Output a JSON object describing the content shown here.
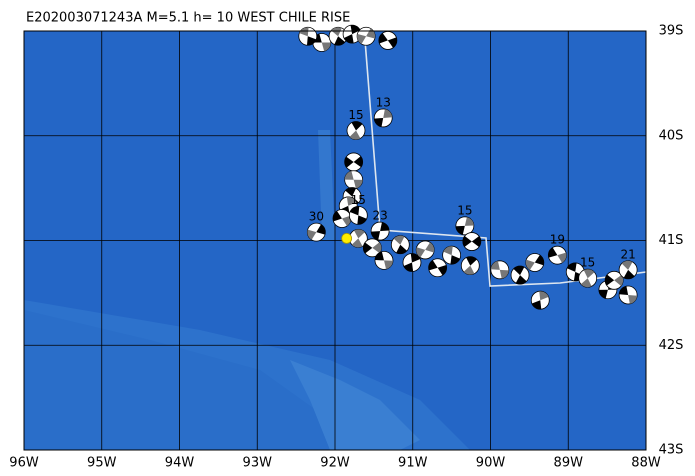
{
  "map": {
    "title": "E202003071243A  M=5.1  h= 10  WEST CHILE RISE",
    "xlim": [
      96,
      88
    ],
    "ylim": [
      39,
      43
    ],
    "xticks": [
      {
        "value": 96,
        "label": "96W"
      },
      {
        "value": 95,
        "label": "95W"
      },
      {
        "value": 94,
        "label": "94W"
      },
      {
        "value": 93,
        "label": "93W"
      },
      {
        "value": 92,
        "label": "92W"
      },
      {
        "value": 91,
        "label": "91W"
      },
      {
        "value": 90,
        "label": "90W"
      },
      {
        "value": 89,
        "label": "89W"
      },
      {
        "value": 88,
        "label": "88W"
      }
    ],
    "yticks": [
      {
        "value": 39,
        "label": "39S"
      },
      {
        "value": 40,
        "label": "40S"
      },
      {
        "value": 41,
        "label": "41S"
      },
      {
        "value": 42,
        "label": "42S"
      },
      {
        "value": 43,
        "label": "43S"
      }
    ],
    "grid": true,
    "epicenter": {
      "lon": 91.85,
      "lat": 40.98,
      "color": "#ffee00"
    },
    "events": [
      {
        "lon": 92.17,
        "lat": 39.11
      },
      {
        "lon": 91.96,
        "lat": 39.05
      },
      {
        "lon": 91.78,
        "lat": 39.03
      },
      {
        "lon": 91.6,
        "lat": 39.05
      },
      {
        "lon": 91.32,
        "lat": 39.09
      },
      {
        "lon": 92.35,
        "lat": 39.05
      },
      {
        "lon": 91.73,
        "lat": 39.95,
        "depth": 15
      },
      {
        "lon": 91.38,
        "lat": 39.83,
        "depth": 13
      },
      {
        "lon": 91.76,
        "lat": 40.25
      },
      {
        "lon": 91.76,
        "lat": 40.42
      },
      {
        "lon": 91.78,
        "lat": 40.58
      },
      {
        "lon": 91.83,
        "lat": 40.67
      },
      {
        "lon": 92.24,
        "lat": 40.92,
        "depth": 30
      },
      {
        "lon": 91.91,
        "lat": 40.79
      },
      {
        "lon": 91.7,
        "lat": 40.76,
        "depth": 15
      },
      {
        "lon": 91.7,
        "lat": 40.98
      },
      {
        "lon": 91.42,
        "lat": 40.91,
        "depth": 23
      },
      {
        "lon": 91.52,
        "lat": 41.07
      },
      {
        "lon": 91.37,
        "lat": 41.19
      },
      {
        "lon": 91.16,
        "lat": 41.04
      },
      {
        "lon": 91.01,
        "lat": 41.21
      },
      {
        "lon": 90.84,
        "lat": 41.09
      },
      {
        "lon": 90.68,
        "lat": 41.26
      },
      {
        "lon": 90.5,
        "lat": 41.14
      },
      {
        "lon": 90.26,
        "lat": 41.24
      },
      {
        "lon": 90.33,
        "lat": 40.86,
        "depth": 15
      },
      {
        "lon": 90.24,
        "lat": 41.01
      },
      {
        "lon": 89.88,
        "lat": 41.28
      },
      {
        "lon": 89.62,
        "lat": 41.33
      },
      {
        "lon": 89.36,
        "lat": 41.57
      },
      {
        "lon": 89.43,
        "lat": 41.21
      },
      {
        "lon": 89.14,
        "lat": 41.14,
        "depth": 19
      },
      {
        "lon": 88.91,
        "lat": 41.3
      },
      {
        "lon": 88.75,
        "lat": 41.36,
        "depth": 15
      },
      {
        "lon": 88.49,
        "lat": 41.47
      },
      {
        "lon": 88.41,
        "lat": 41.38
      },
      {
        "lon": 88.23,
        "lat": 41.52
      },
      {
        "lon": 88.23,
        "lat": 41.28,
        "depth": 21
      }
    ]
  }
}
